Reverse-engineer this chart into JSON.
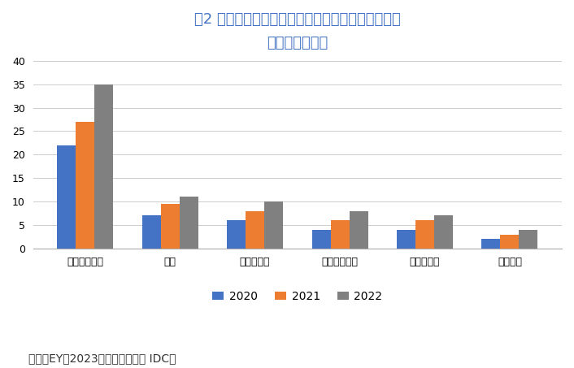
{
  "title": "図2 東南アジアにおけるパブリッククラウドの市場\n規模（億ドル）",
  "categories": [
    "シンガポール",
    "タイ",
    "マレーシア",
    "インドネシア",
    "フィリピン",
    "ベトナム"
  ],
  "series": {
    "2020": [
      22,
      7,
      6,
      4,
      4,
      2
    ],
    "2021": [
      27,
      9.5,
      8,
      6,
      6,
      3
    ],
    "2022": [
      35,
      11,
      10,
      8,
      7,
      4
    ]
  },
  "colors": {
    "2020": "#4472C4",
    "2021": "#ED7D31",
    "2022": "#808080"
  },
  "ylim": [
    0,
    40
  ],
  "yticks": [
    0,
    5,
    10,
    15,
    20,
    25,
    30,
    35,
    40
  ],
  "footnote": "出所：EY（2023）、元データは IDC。",
  "background_color": "#FFFFFF",
  "title_color": "#4472C4",
  "bar_width": 0.22,
  "title_fontsize": 13,
  "legend_fontsize": 10,
  "tick_fontsize": 9,
  "footnote_fontsize": 10
}
